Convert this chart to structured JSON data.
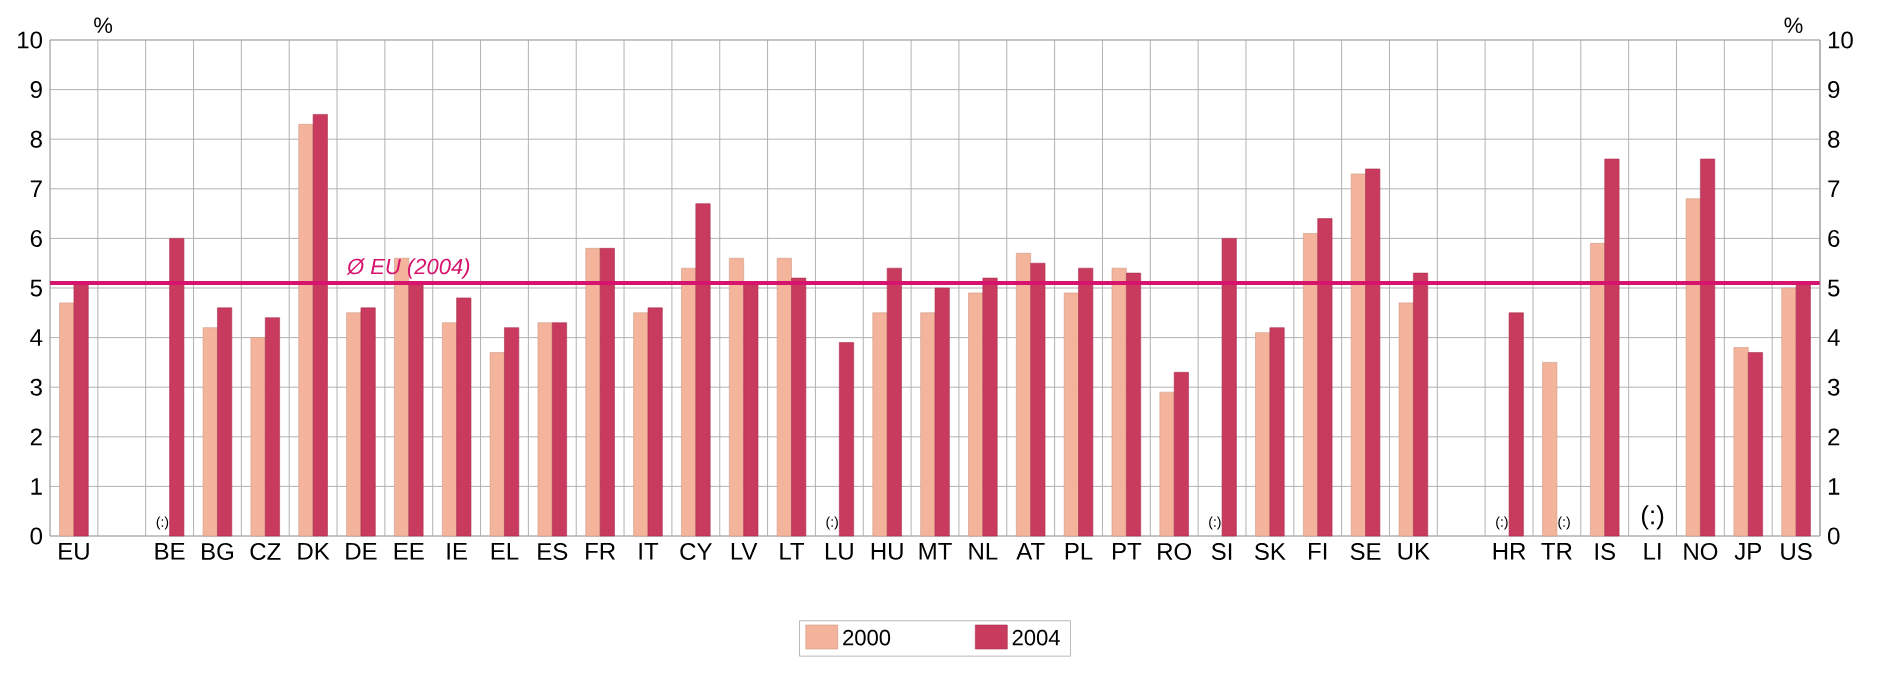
{
  "chart_data": {
    "type": "bar",
    "categories": [
      "EU",
      null,
      "BE",
      "BG",
      "CZ",
      "DK",
      "DE",
      "EE",
      "IE",
      "EL",
      "ES",
      "FR",
      "IT",
      "CY",
      "LV",
      "LT",
      "LU",
      "HU",
      "MT",
      "NL",
      "AT",
      "PL",
      "PT",
      "RO",
      "SI",
      "SK",
      "FI",
      "SE",
      "UK",
      null,
      "HR",
      "TR",
      "IS",
      "LI",
      "NO",
      "JP",
      "US"
    ],
    "series": [
      {
        "name": "2000",
        "color": "#f4b49c",
        "values": [
          4.7,
          null,
          null,
          4.2,
          4.0,
          8.3,
          4.5,
          5.6,
          4.3,
          3.7,
          4.3,
          5.8,
          4.5,
          5.4,
          5.6,
          5.6,
          null,
          4.5,
          4.5,
          4.9,
          5.7,
          4.9,
          5.4,
          2.9,
          null,
          4.1,
          6.1,
          7.3,
          4.7,
          null,
          null,
          3.5,
          5.9,
          null,
          6.8,
          3.8,
          5.0
        ]
      },
      {
        "name": "2004",
        "color": "#c83a5e",
        "values": [
          5.1,
          null,
          6.0,
          4.6,
          4.4,
          8.5,
          4.6,
          5.1,
          4.8,
          4.2,
          4.3,
          5.8,
          4.6,
          6.7,
          5.1,
          5.2,
          3.9,
          5.4,
          5.0,
          5.2,
          5.5,
          5.4,
          5.3,
          3.3,
          6.0,
          4.2,
          6.4,
          7.4,
          5.3,
          null,
          4.5,
          null,
          7.6,
          null,
          7.6,
          3.7,
          5.1
        ]
      }
    ],
    "ylabel": "%",
    "y2label": "%",
    "ylim": [
      0,
      10
    ],
    "yticks": [
      0,
      1,
      2,
      3,
      4,
      5,
      6,
      7,
      8,
      9,
      10
    ],
    "y2lim": [
      0,
      10
    ],
    "y2ticks": [
      0,
      1,
      2,
      3,
      4,
      5,
      6,
      7,
      8,
      9,
      10
    ],
    "ref_lines": [
      {
        "axis": "y",
        "value": 5.1,
        "label": "Ø EU (2004)",
        "color": "#d6146e"
      }
    ],
    "annotations": [
      {
        "text": "(:)",
        "x": "BE",
        "y": 0
      },
      {
        "text": "(:)",
        "x": "LU",
        "y": 0
      },
      {
        "text": "(:)",
        "x": "SI",
        "y": 0
      },
      {
        "text": "(:)",
        "x": "HR",
        "y": 0
      },
      {
        "text": "(:)",
        "x": "TR",
        "y": 0
      },
      "(:)"
    ],
    "grid": true,
    "legend": "bottom"
  }
}
